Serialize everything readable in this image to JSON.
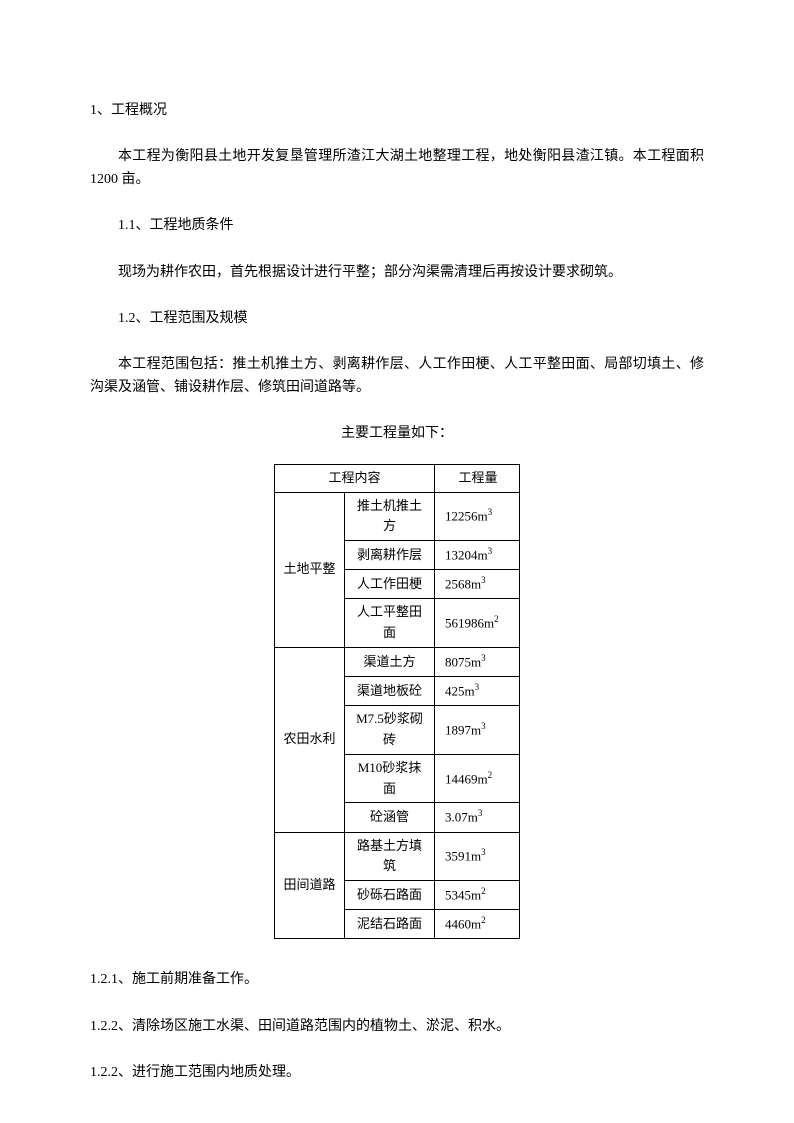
{
  "headings": {
    "h1": "1、工程概况",
    "h1_1": "1.1、工程地质条件",
    "h1_2": "1.2、工程范围及规模"
  },
  "paragraphs": {
    "p1": "本工程为衡阳县土地开发复垦管理所渣江大湖土地整理工程，地处衡阳县渣江镇。本工程面积 1200 亩。",
    "p2": "现场为耕作农田，首先根据设计进行平整；部分沟渠需清理后再按设计要求砌筑。",
    "p3": "本工程范围包括：推土机推土方、剥离耕作层、人工作田梗、人工平整田面、局部切填土、修沟渠及涵管、铺设耕作层、修筑田间道路等。"
  },
  "table_title": "主要工程量如下：",
  "table": {
    "header": {
      "col1": "工程内容",
      "col2": "工程量"
    },
    "groups": [
      {
        "category": "土地平整",
        "rows": [
          {
            "content": "推土机推土方",
            "quantity": "12256m³"
          },
          {
            "content": "剥离耕作层",
            "quantity": "13204m³"
          },
          {
            "content": "人工作田梗",
            "quantity": "2568m³"
          },
          {
            "content": "人工平整田面",
            "quantity": "561986m²"
          }
        ]
      },
      {
        "category": "农田水利",
        "rows": [
          {
            "content": "渠道土方",
            "quantity": "8075m³"
          },
          {
            "content": "渠道地板砼",
            "quantity": "425m³"
          },
          {
            "content": "M7.5砂浆砌砖",
            "quantity": "1897m³"
          },
          {
            "content": "M10砂浆抹面",
            "quantity": "14469m²"
          },
          {
            "content": "砼涵管",
            "quantity": "3.07m³"
          }
        ]
      },
      {
        "category": "田间道路",
        "rows": [
          {
            "content": "路基土方填筑",
            "quantity": "3591m³"
          },
          {
            "content": "砂砾石路面",
            "quantity": "5345m²"
          },
          {
            "content": "泥结石路面",
            "quantity": "4460m²"
          }
        ]
      }
    ]
  },
  "list_items": {
    "i1": "1.2.1、施工前期准备工作。",
    "i2": "1.2.2、清除场区施工水渠、田间道路范围内的植物土、淤泥、积水。",
    "i3": "1.2.2、进行施工范围内地质处理。"
  },
  "style": {
    "background_color": "#ffffff",
    "text_color": "#000000",
    "border_color": "#000000",
    "font_size_body": 14,
    "font_size_table": 13
  }
}
